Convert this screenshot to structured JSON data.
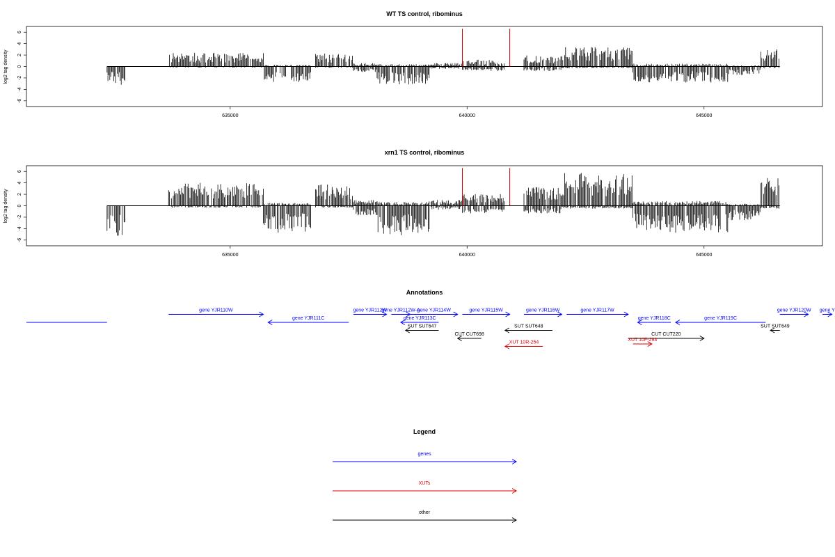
{
  "colors": {
    "gene": "#0000ff",
    "xut": "#e00000",
    "other": "#000000",
    "mark": "#d40000"
  },
  "panels": [
    {
      "title": "WT TS control, ribominus",
      "ylabel": "log2 tag density",
      "yticks": [
        6,
        4,
        2,
        0,
        -2,
        -4,
        -6
      ],
      "ylim": [
        -7,
        7
      ],
      "seed": 11,
      "pos_scale": 0.8,
      "neg_scale": 0.8,
      "marks": [
        639900,
        640900
      ],
      "mark_height": 6.6
    },
    {
      "title": "xrn1 TS control, ribominus",
      "ylabel": "log2 tag density",
      "yticks": [
        6,
        4,
        2,
        0,
        -2,
        -4,
        -6
      ],
      "ylim": [
        -7,
        7
      ],
      "seed": 29,
      "pos_scale": 1.35,
      "neg_scale": 1.35,
      "marks": [
        639900,
        640900
      ],
      "mark_height": 6.6
    }
  ],
  "chart_data": {
    "type": "bar",
    "title": "WT TS control, ribominus / xrn1 TS control, ribominus",
    "ylabel": "log2 tag density",
    "xlim": [
      630700,
      647500
    ],
    "xticks": [
      635000,
      640000,
      645000
    ],
    "data_range": [
      632400,
      646600
    ],
    "segments": [
      {
        "start": 632400,
        "end": 632800,
        "pos": 0.0,
        "neg": 3.2
      },
      {
        "start": 633700,
        "end": 635700,
        "pos": 2.4,
        "neg": 0.2
      },
      {
        "start": 635700,
        "end": 636700,
        "pos": 0.3,
        "neg": 2.8
      },
      {
        "start": 636800,
        "end": 637600,
        "pos": 2.3,
        "neg": 0.2
      },
      {
        "start": 637600,
        "end": 638100,
        "pos": 0.6,
        "neg": 1.0
      },
      {
        "start": 638100,
        "end": 639200,
        "pos": 0.4,
        "neg": 3.2
      },
      {
        "start": 639200,
        "end": 639900,
        "pos": 0.6,
        "neg": 0.4
      },
      {
        "start": 639900,
        "end": 640800,
        "pos": 1.2,
        "neg": 0.8
      },
      {
        "start": 641200,
        "end": 642000,
        "pos": 2.0,
        "neg": 0.8
      },
      {
        "start": 642000,
        "end": 643500,
        "pos": 3.4,
        "neg": 0.3
      },
      {
        "start": 643500,
        "end": 645500,
        "pos": 0.5,
        "neg": 2.8
      },
      {
        "start": 645500,
        "end": 646200,
        "pos": 0.2,
        "neg": 1.5
      },
      {
        "start": 646200,
        "end": 646600,
        "pos": 3.0,
        "neg": 0.3
      }
    ]
  },
  "annotations": {
    "title": "Annotations",
    "features": [
      {
        "label": "",
        "type": "gene",
        "start": 630700,
        "end": 632400,
        "dir": "none",
        "row": 2
      },
      {
        "label": "gene YJR110W",
        "type": "gene",
        "start": 633700,
        "end": 635700,
        "dir": "right",
        "row": 1
      },
      {
        "label": "gene YJR111C",
        "type": "gene",
        "start": 635800,
        "end": 637500,
        "dir": "left",
        "row": 2
      },
      {
        "label": "gene YJR112W",
        "type": "gene",
        "start": 637600,
        "end": 638300,
        "dir": "right",
        "row": 1
      },
      {
        "label": "gene YJR112W-A",
        "type": "gene",
        "start": 638400,
        "end": 638800,
        "dir": "right",
        "row": 1
      },
      {
        "label": "gene YJR113C",
        "type": "gene",
        "start": 638600,
        "end": 639400,
        "dir": "left",
        "row": 2
      },
      {
        "label": "gene YJR114W",
        "type": "gene",
        "start": 638800,
        "end": 639800,
        "dir": "right",
        "row": 1
      },
      {
        "label": "gene YJR115W",
        "type": "gene",
        "start": 639900,
        "end": 640900,
        "dir": "right",
        "row": 1
      },
      {
        "label": "gene YJR116W",
        "type": "gene",
        "start": 641200,
        "end": 642000,
        "dir": "right",
        "row": 1
      },
      {
        "label": "gene YJR117W",
        "type": "gene",
        "start": 642100,
        "end": 643400,
        "dir": "right",
        "row": 1
      },
      {
        "label": "gene YJR118C",
        "type": "gene",
        "start": 643600,
        "end": 644300,
        "dir": "left",
        "row": 2
      },
      {
        "label": "gene YJR119C",
        "type": "gene",
        "start": 644400,
        "end": 646300,
        "dir": "left",
        "row": 2
      },
      {
        "label": "gene YJR120W",
        "type": "gene",
        "start": 646600,
        "end": 647200,
        "dir": "right",
        "row": 1
      },
      {
        "label": "gene Y",
        "type": "gene",
        "start": 647500,
        "end": 647700,
        "dir": "right",
        "row": 1
      },
      {
        "label": "SUT SUT647",
        "type": "other",
        "start": 638700,
        "end": 639400,
        "dir": "left",
        "row": 3
      },
      {
        "label": "SUT SUT648",
        "type": "other",
        "start": 640800,
        "end": 641800,
        "dir": "left",
        "row": 3
      },
      {
        "label": "SUT SUT649",
        "type": "other",
        "start": 646400,
        "end": 646600,
        "dir": "left",
        "row": 3
      },
      {
        "label": "CUT CUT698",
        "type": "other",
        "start": 639800,
        "end": 640300,
        "dir": "left",
        "row": 4
      },
      {
        "label": "CUT CUT220",
        "type": "other",
        "start": 643400,
        "end": 645000,
        "dir": "right",
        "row": 4
      },
      {
        "label": "XUT 10R-254",
        "type": "xut",
        "start": 640800,
        "end": 641600,
        "dir": "left",
        "row": 5
      },
      {
        "label": "XUT 10F-293",
        "type": "xut",
        "start": 643500,
        "end": 643900,
        "dir": "right",
        "row": 4.7
      }
    ]
  },
  "legend": {
    "title": "Legend",
    "items": [
      {
        "label": "genes",
        "type": "gene"
      },
      {
        "label": "XUTs",
        "type": "xut"
      },
      {
        "label": "other",
        "type": "other"
      }
    ]
  }
}
